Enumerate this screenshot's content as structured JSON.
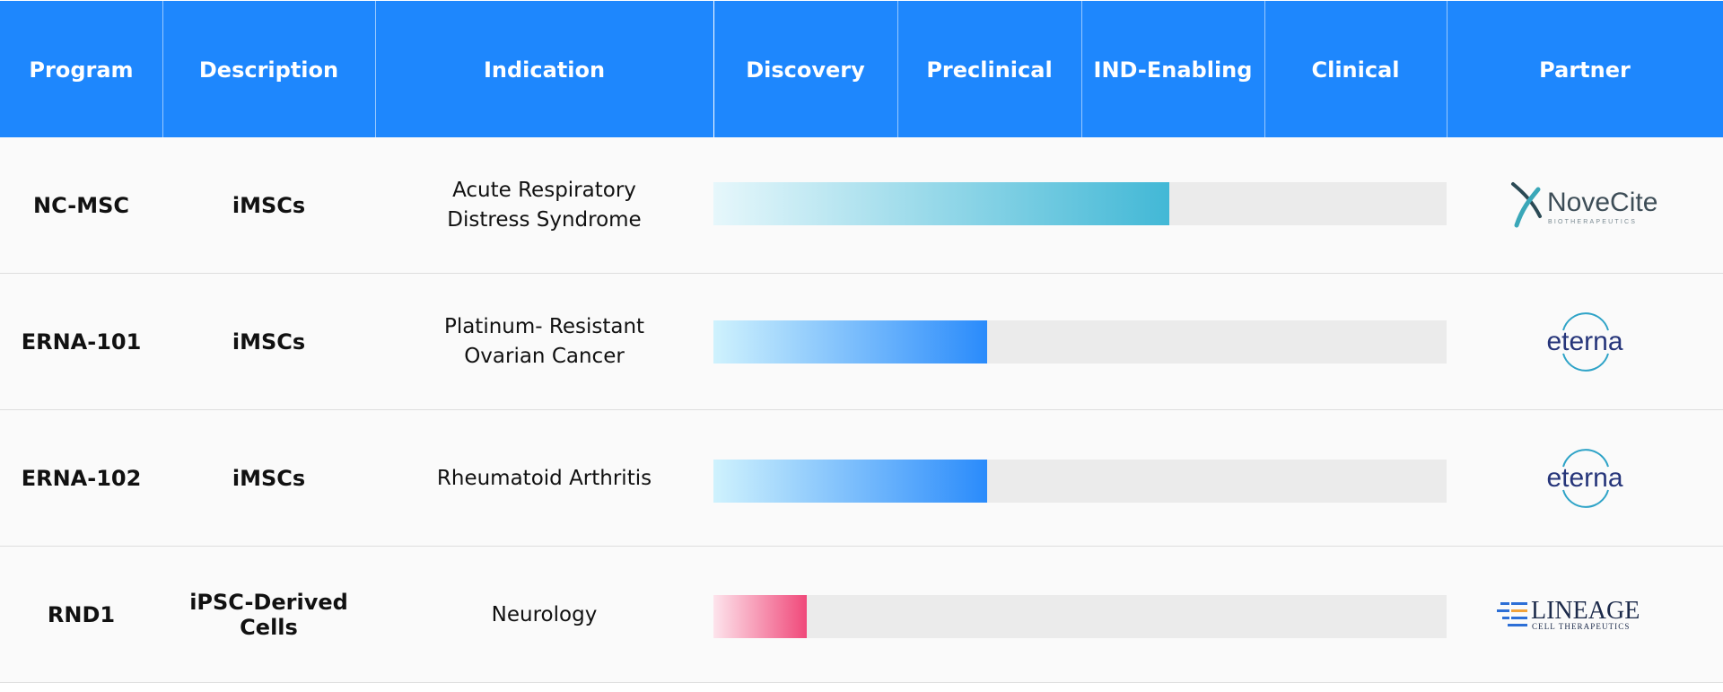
{
  "columns": [
    "Program",
    "Description",
    "Indication",
    "Discovery",
    "Preclinical",
    "IND-Enabling",
    "Clinical",
    "Partner"
  ],
  "rows": [
    {
      "program": "NC-MSC",
      "description": "iMSCs",
      "indication_lines": [
        "Acute Respiratory",
        "Distress Syndrome"
      ],
      "progress": 0.622,
      "bar_color": "teal",
      "partner_logo": {
        "icon": "novecite-logo",
        "name": "NoveCite",
        "sub": "BIOTHERAPEUTICS"
      }
    },
    {
      "program": "ERNA-101",
      "description": "iMSCs",
      "indication_lines": [
        "Platinum- Resistant",
        "Ovarian Cancer"
      ],
      "progress": 0.373,
      "bar_color": "blue",
      "partner_logo": {
        "icon": "eterna-logo",
        "name": "eterna"
      }
    },
    {
      "program": "ERNA-102",
      "description": "iMSCs",
      "indication_lines": [
        "Rheumatoid Arthritis"
      ],
      "progress": 0.373,
      "bar_color": "blue",
      "partner_logo": {
        "icon": "eterna-logo",
        "name": "eterna"
      }
    },
    {
      "program": "RND1",
      "description": "iPSC-Derived Cells",
      "indication_lines": [
        "Neurology"
      ],
      "progress": 0.127,
      "bar_color": "pink",
      "partner_logo": {
        "icon": "lineage-logo",
        "name": "LINEAGE",
        "sub": "CELL THERAPEUTICS"
      }
    }
  ],
  "colors": {
    "header": "#1e87fd",
    "teal": "#42b8d6",
    "blue": "#2a8bfb",
    "pink": "#f0497a",
    "track": "#ebebeb"
  }
}
